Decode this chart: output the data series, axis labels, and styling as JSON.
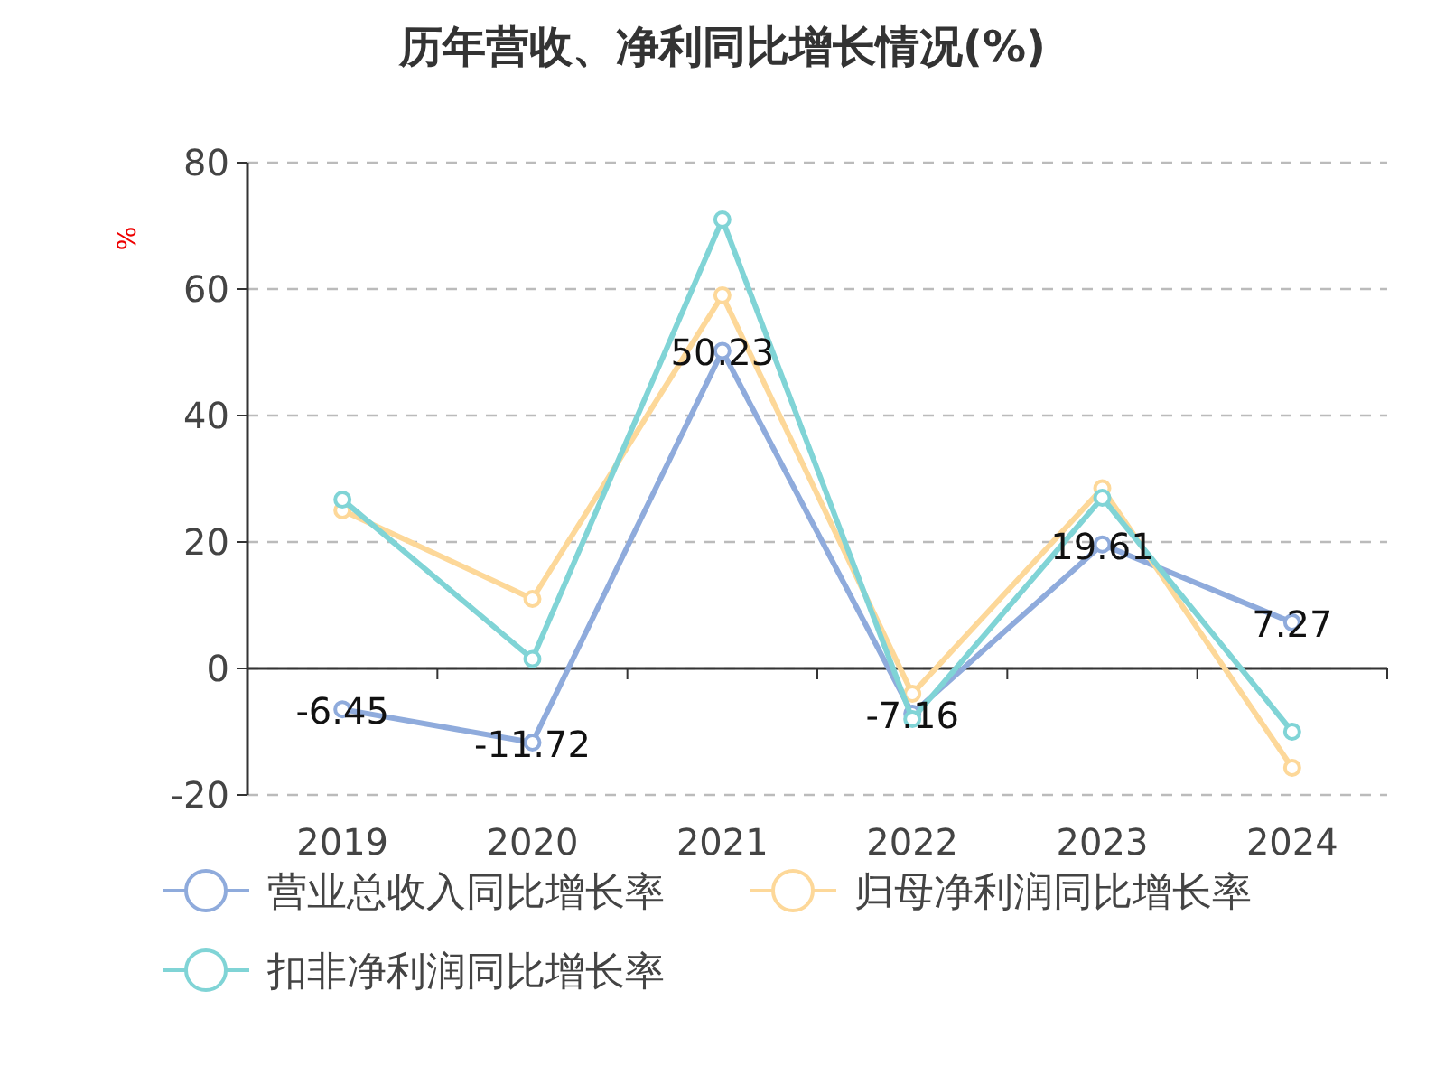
{
  "chart_data": {
    "type": "line",
    "title": "历年营收、净利同比增长情况(%)",
    "ylabel": "%",
    "categories": [
      "2019",
      "2020",
      "2021",
      "2022",
      "2023",
      "2024"
    ],
    "series": [
      {
        "name": "营业总收入同比增长率",
        "color": "#8fabdc",
        "values": [
          -6.45,
          -11.72,
          50.23,
          -7.16,
          19.61,
          7.27
        ],
        "value_labels": [
          "-6.45",
          "-11.72",
          "50.23",
          "-7.16",
          "19.61",
          "7.27"
        ]
      },
      {
        "name": "归母净利润同比增长率",
        "color": "#fdd899",
        "values": [
          25,
          11,
          59,
          -4,
          28.5,
          -15.7
        ]
      },
      {
        "name": "扣非净利润同比增长率",
        "color": "#80d4d6",
        "values": [
          26.7,
          1.5,
          71,
          -8,
          27,
          -10
        ]
      }
    ],
    "ylim": [
      -20,
      80
    ],
    "yticks": [
      -20,
      0,
      20,
      40,
      60,
      80
    ],
    "grid": "y",
    "legend": "bottom",
    "marker": "circle",
    "line_style": "solid"
  }
}
